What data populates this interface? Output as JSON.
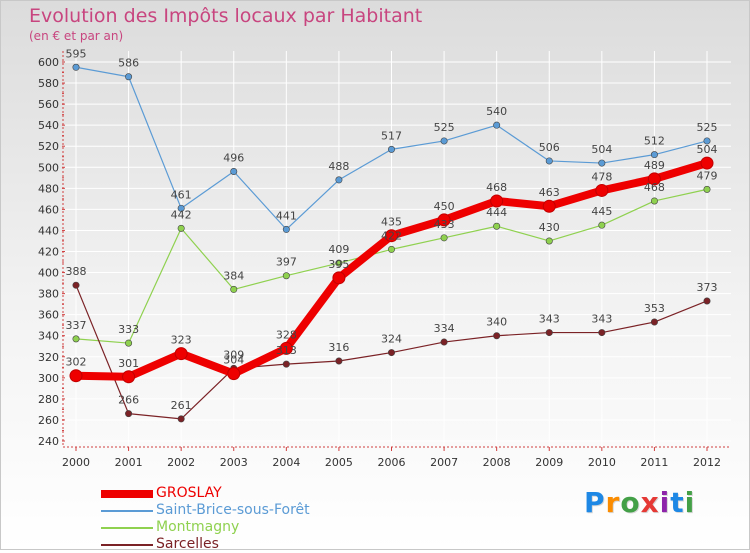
{
  "title": "Evolution des Impôts locaux par Habitant",
  "subtitle": "(en € et par an)",
  "colors": {
    "title": "#c8457f",
    "axis_text": "#333333"
  },
  "chart_data": {
    "type": "line",
    "x": [
      "2000",
      "2001",
      "2002",
      "2003",
      "2004",
      "2005",
      "2006",
      "2007",
      "2008",
      "2009",
      "2010",
      "2011",
      "2012"
    ],
    "ylim": [
      240,
      600
    ],
    "yticks": [
      240,
      260,
      280,
      300,
      320,
      340,
      360,
      380,
      400,
      420,
      440,
      460,
      480,
      500,
      520,
      540,
      560,
      580,
      600
    ],
    "grid": true,
    "legend_position": "bottom-left",
    "series": [
      {
        "name": "GROSLAY",
        "color": "#ee0000",
        "values": [
          302,
          301,
          323,
          304,
          328,
          395,
          435,
          450,
          468,
          463,
          478,
          489,
          504
        ]
      },
      {
        "name": "Saint-Brice-sous-Forêt",
        "color": "#5b9bd5",
        "values": [
          595,
          586,
          461,
          496,
          441,
          488,
          517,
          525,
          540,
          506,
          504,
          512,
          525
        ]
      },
      {
        "name": "Montmagny",
        "color": "#8fd14f",
        "values": [
          337,
          333,
          442,
          384,
          397,
          409,
          422,
          433,
          444,
          430,
          445,
          468,
          479
        ]
      },
      {
        "name": "Sarcelles",
        "color": "#7b2226",
        "values": [
          388,
          266,
          261,
          309,
          313,
          316,
          324,
          334,
          340,
          343,
          343,
          353,
          373
        ]
      }
    ],
    "data_labels": [
      [
        "302",
        "301",
        "323",
        "304",
        "328",
        "395",
        "435",
        "450",
        "468",
        "463",
        "478",
        "489",
        "504"
      ],
      [
        "595",
        "586",
        "461",
        "496",
        "441",
        "488",
        "517",
        "525",
        "540",
        "506",
        "504",
        "512",
        "525"
      ],
      [
        "337",
        "333",
        "442",
        "384",
        "397",
        "409",
        "422",
        "433",
        "444",
        "430",
        "445",
        "468",
        "479"
      ],
      [
        "388",
        "266",
        "261",
        "309",
        "313",
        "316",
        "324",
        "334",
        "340",
        "343",
        "343",
        "353",
        "373"
      ]
    ]
  },
  "logo": {
    "letters": [
      "P",
      "r",
      "o",
      "x",
      "i",
      "t",
      "i"
    ],
    "colors": [
      "#1e88e5",
      "#fb8c00",
      "#43a047",
      "#e53935",
      "#8e24aa",
      "#1e88e5",
      "#43a047"
    ]
  }
}
